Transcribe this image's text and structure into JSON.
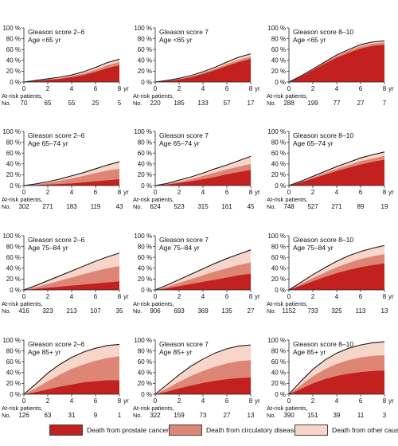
{
  "chart_data": {
    "type": "area",
    "y_ticks": [
      "0 %",
      "20 %",
      "40 %",
      "60 %",
      "80 %",
      "100 %"
    ],
    "x_ticks": [
      "0",
      "2",
      "4",
      "6",
      "8"
    ],
    "x_unit": "yr",
    "at_risk_label": "At-risk patients,",
    "at_risk_no": "No.",
    "ylim": [
      0,
      100
    ],
    "xlim": [
      0,
      8
    ],
    "colors": {
      "prostate": "#c2211f",
      "circulatory": "#dd8675",
      "other": "#f7d5c9",
      "outline": "#1a1a1a"
    },
    "legend": [
      {
        "label": "Death from prostate cancer",
        "color": "#c2211f"
      },
      {
        "label": "Death from circulatory disease",
        "color": "#dd8675"
      },
      {
        "label": "Death from other causes",
        "color": "#f7d5c9"
      }
    ],
    "panels": [
      {
        "title": "Gleason score 2–6",
        "subtitle": "Age <65 yr",
        "at_risk": [
          "70",
          "65",
          "55",
          "25",
          "5"
        ],
        "x": [
          0,
          1,
          2,
          3,
          4,
          5,
          6,
          7,
          8
        ],
        "prostate": [
          0,
          2,
          4,
          6,
          9,
          13,
          19,
          26,
          31
        ],
        "circulatory_cum": [
          0,
          2,
          5,
          7,
          11,
          16,
          23,
          31,
          37
        ],
        "total": [
          0,
          3,
          6,
          9,
          13,
          19,
          27,
          36,
          42
        ]
      },
      {
        "title": "Gleason score 7",
        "subtitle": "Age <65 yr",
        "at_risk": [
          "220",
          "185",
          "133",
          "57",
          "17"
        ],
        "x": [
          0,
          1,
          2,
          3,
          4,
          5,
          6,
          7,
          8
        ],
        "prostate": [
          0,
          2,
          5,
          9,
          15,
          22,
          30,
          37,
          43
        ],
        "circulatory_cum": [
          0,
          2,
          6,
          10,
          17,
          24,
          33,
          41,
          47
        ],
        "total": [
          0,
          3,
          7,
          12,
          19,
          27,
          37,
          46,
          52
        ]
      },
      {
        "title": "Gleason score 8–10",
        "subtitle": "Age <65 yr",
        "at_risk": [
          "288",
          "199",
          "77",
          "27",
          "7"
        ],
        "x": [
          0,
          1,
          2,
          3,
          4,
          5,
          6,
          7,
          8
        ],
        "prostate": [
          0,
          10,
          22,
          34,
          45,
          54,
          62,
          67,
          69
        ],
        "circulatory_cum": [
          0,
          10,
          23,
          36,
          48,
          58,
          66,
          71,
          73
        ],
        "total": [
          0,
          11,
          24,
          37,
          50,
          60,
          69,
          74,
          76
        ]
      },
      {
        "title": "Gleason score 2–6",
        "subtitle": "Age 65–74 yr",
        "at_risk": [
          "302",
          "271",
          "183",
          "119",
          "43"
        ],
        "x": [
          0,
          1,
          2,
          3,
          4,
          5,
          6,
          7,
          8
        ],
        "prostate": [
          0,
          1,
          2,
          3,
          4,
          6,
          8,
          10,
          12
        ],
        "circulatory_cum": [
          0,
          2,
          5,
          9,
          13,
          18,
          23,
          28,
          31
        ],
        "total": [
          0,
          3,
          7,
          12,
          18,
          24,
          31,
          38,
          44
        ]
      },
      {
        "title": "Gleason score 7",
        "subtitle": "Age 65–74 yr",
        "at_risk": [
          "624",
          "523",
          "315",
          "161",
          "45"
        ],
        "x": [
          0,
          1,
          2,
          3,
          4,
          5,
          6,
          7,
          8
        ],
        "prostate": [
          0,
          2,
          5,
          8,
          12,
          16,
          21,
          25,
          29
        ],
        "circulatory_cum": [
          0,
          3,
          7,
          12,
          18,
          24,
          30,
          35,
          40
        ],
        "total": [
          0,
          4,
          10,
          16,
          23,
          31,
          38,
          46,
          54
        ]
      },
      {
        "title": "Gleason score 8–10",
        "subtitle": "Age 65–74 yr",
        "at_risk": [
          "748",
          "527",
          "271",
          "89",
          "19"
        ],
        "x": [
          0,
          1,
          2,
          3,
          4,
          5,
          6,
          7,
          8
        ],
        "prostate": [
          0,
          6,
          13,
          20,
          27,
          33,
          39,
          44,
          48
        ],
        "circulatory_cum": [
          0,
          7,
          15,
          23,
          31,
          38,
          45,
          50,
          55
        ],
        "total": [
          0,
          8,
          17,
          26,
          35,
          43,
          51,
          57,
          62
        ]
      },
      {
        "title": "Gleason score 2–6",
        "subtitle": "Age 75–84 yr",
        "at_risk": [
          "416",
          "323",
          "213",
          "107",
          "35"
        ],
        "x": [
          0,
          1,
          2,
          3,
          4,
          5,
          6,
          7,
          8
        ],
        "prostate": [
          0,
          2,
          4,
          6,
          8,
          10,
          12,
          14,
          16
        ],
        "circulatory_cum": [
          0,
          5,
          11,
          17,
          23,
          29,
          35,
          40,
          44
        ],
        "total": [
          0,
          8,
          17,
          26,
          35,
          44,
          53,
          61,
          68
        ]
      },
      {
        "title": "Gleason score 7",
        "subtitle": "Age 75–84 yr",
        "at_risk": [
          "906",
          "693",
          "369",
          "135",
          "27"
        ],
        "x": [
          0,
          1,
          2,
          3,
          4,
          5,
          6,
          7,
          8
        ],
        "prostate": [
          0,
          3,
          7,
          11,
          15,
          19,
          23,
          27,
          30
        ],
        "circulatory_cum": [
          0,
          6,
          13,
          20,
          27,
          34,
          40,
          46,
          51
        ],
        "total": [
          0,
          9,
          19,
          29,
          39,
          49,
          58,
          66,
          74
        ]
      },
      {
        "title": "Gleason score 8–10",
        "subtitle": "Age 75–84 yr",
        "at_risk": [
          "1152",
          "733",
          "325",
          "113",
          "13"
        ],
        "x": [
          0,
          1,
          2,
          3,
          4,
          5,
          6,
          7,
          8
        ],
        "prostate": [
          0,
          8,
          16,
          24,
          31,
          37,
          42,
          46,
          49
        ],
        "circulatory_cum": [
          0,
          11,
          22,
          32,
          42,
          50,
          57,
          62,
          66
        ],
        "total": [
          0,
          14,
          28,
          41,
          53,
          63,
          71,
          77,
          82
        ]
      },
      {
        "title": "Gleason score 2–6",
        "subtitle": "Age 85+ yr",
        "at_risk": [
          "126",
          "63",
          "31",
          "9",
          "1"
        ],
        "x": [
          0,
          1,
          2,
          3,
          4,
          5,
          6,
          7,
          8
        ],
        "prostate": [
          0,
          4,
          9,
          14,
          18,
          22,
          24,
          26,
          26
        ],
        "circulatory_cum": [
          0,
          11,
          24,
          36,
          47,
          55,
          62,
          67,
          70
        ],
        "total": [
          0,
          19,
          39,
          55,
          68,
          78,
          85,
          90,
          92
        ]
      },
      {
        "title": "Gleason score 7",
        "subtitle": "Age 85+ yr",
        "at_risk": [
          "322",
          "159",
          "73",
          "27",
          "13"
        ],
        "x": [
          0,
          1,
          2,
          3,
          4,
          5,
          6,
          7,
          8
        ],
        "prostate": [
          0,
          5,
          11,
          16,
          21,
          25,
          28,
          30,
          31
        ],
        "circulatory_cum": [
          0,
          11,
          23,
          34,
          43,
          51,
          57,
          61,
          63
        ],
        "total": [
          0,
          18,
          36,
          52,
          65,
          76,
          84,
          89,
          91
        ]
      },
      {
        "title": "Gleason score 8–10",
        "subtitle": "Age 85+ yr",
        "at_risk": [
          "390",
          "151",
          "39",
          "11",
          "3"
        ],
        "x": [
          0,
          1,
          2,
          3,
          4,
          5,
          6,
          7,
          8
        ],
        "prostate": [
          0,
          10,
          20,
          28,
          34,
          38,
          41,
          43,
          44
        ],
        "circulatory_cum": [
          0,
          17,
          33,
          46,
          56,
          63,
          68,
          71,
          72
        ],
        "total": [
          0,
          24,
          46,
          63,
          76,
          85,
          91,
          95,
          97
        ]
      }
    ]
  }
}
